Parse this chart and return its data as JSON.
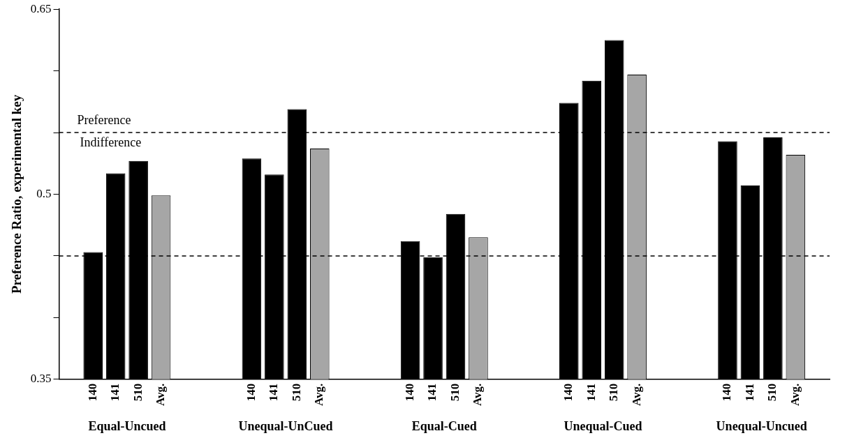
{
  "chart_data": {
    "type": "bar",
    "ylabel": "Preference Ratio, experimental key",
    "categories": [
      null,
      "140",
      "141",
      "510",
      "Avg.",
      null,
      null,
      null,
      "140",
      "141",
      "510",
      "Avg.",
      null,
      null,
      null,
      "140",
      "141",
      "510",
      "Avg.",
      null,
      null,
      null,
      "140",
      "141",
      "510",
      "Avg.",
      null,
      null,
      null,
      "140",
      "141",
      "510",
      "Avg.",
      null
    ],
    "values": [
      null,
      0.453,
      0.517,
      0.527,
      0.499,
      null,
      null,
      null,
      0.529,
      0.516,
      0.569,
      0.537,
      null,
      null,
      null,
      0.462,
      0.449,
      0.484,
      0.465,
      null,
      null,
      null,
      0.574,
      0.592,
      0.625,
      0.597,
      null,
      null,
      null,
      0.543,
      0.507,
      0.546,
      0.532,
      null
    ],
    "colors": [
      null,
      "#000000",
      "#000000",
      "#000000",
      "#a6a6a6",
      null,
      null,
      null,
      "#000000",
      "#000000",
      "#000000",
      "#a6a6a6",
      null,
      null,
      null,
      "#000000",
      "#000000",
      "#000000",
      "#a6a6a6",
      null,
      null,
      null,
      "#000000",
      "#000000",
      "#000000",
      "#a6a6a6",
      null,
      null,
      null,
      "#000000",
      "#000000",
      "#000000",
      "#a6a6a6",
      null
    ],
    "ylim": [
      0.35,
      0.65
    ],
    "yticks": [
      0.35,
      {
        "value": 0.4,
        "label": null
      },
      {
        "value": 0.45,
        "label": null
      },
      0.5,
      {
        "value": 0.55,
        "label": null
      },
      {
        "value": 0.6,
        "label": null
      },
      0.65
    ],
    "ref_lines": [
      {
        "axis": "y",
        "value": 0.55,
        "label": "Preference",
        "line_style": "dashed"
      },
      {
        "axis": "y",
        "value": 0.45,
        "label": null,
        "line_style": "dashed"
      }
    ],
    "annotations": [
      "Indifference",
      "Equal-Uncued",
      "Unequal-UnCued",
      "Equal-Cued",
      "Unequal-Cued",
      "Unequal-Uncued"
    ],
    "grid": false,
    "legend": false
  }
}
